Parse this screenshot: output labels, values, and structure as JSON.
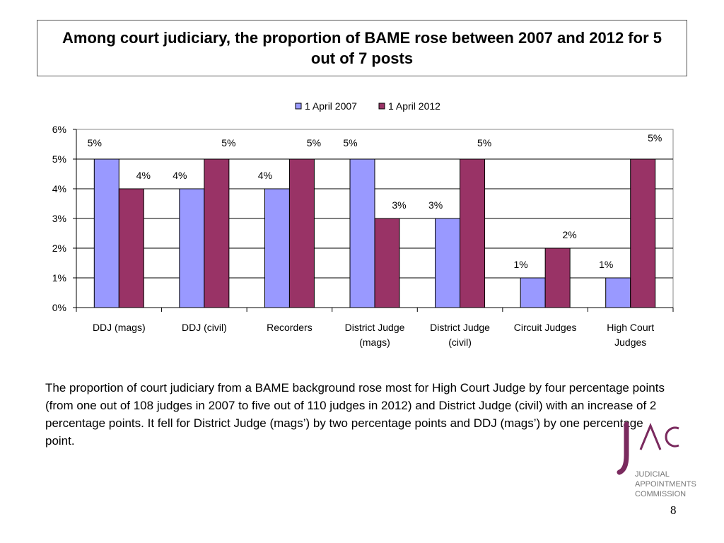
{
  "title": "Among court judiciary, the proportion of BAME rose between 2007 and 2012 for 5 out of 7 posts",
  "body_text": "The proportion of court judiciary from a BAME background rose most for High Court Judge by four percentage points (from one out of 108 judges in 2007 to five out of 110 judges in 2012) and District Judge (civil) with an increase of 2 percentage points. It fell for District Judge (mags’) by two percentage points and DDJ (mags’) by one percentage point.",
  "logo": {
    "mark": "JAC",
    "lines": [
      "JUDICIAL",
      "APPOINTMENTS",
      "COMMISSION"
    ],
    "color": "#7a2a5e"
  },
  "page_number": "8",
  "chart_data": {
    "type": "bar",
    "categories": [
      [
        "DDJ (mags)"
      ],
      [
        "DDJ (civil)"
      ],
      [
        "Recorders"
      ],
      [
        "District Judge",
        "(mags)"
      ],
      [
        "District Judge",
        "(civil)"
      ],
      [
        "Circuit Judges"
      ],
      [
        "High Court",
        "Judges"
      ]
    ],
    "series": [
      {
        "name": "1 April 2007",
        "color": "#9999ff",
        "values": [
          5,
          4,
          4,
          5,
          3,
          1,
          1
        ],
        "labels": [
          "5%",
          "4%",
          "4%",
          "5%",
          "3%",
          "1%",
          "1%"
        ]
      },
      {
        "name": "1 April 2012",
        "color": "#993366",
        "values": [
          4,
          5,
          5,
          3,
          5,
          2,
          5
        ],
        "labels": [
          "4%",
          "5%",
          "5%",
          "3%",
          "5%",
          "2%",
          "5%"
        ]
      }
    ],
    "yticks": [
      "0%",
      "1%",
      "2%",
      "3%",
      "4%",
      "5%",
      "6%"
    ],
    "ylim": [
      0,
      6
    ],
    "grid": true,
    "legend_position": "top-center"
  }
}
